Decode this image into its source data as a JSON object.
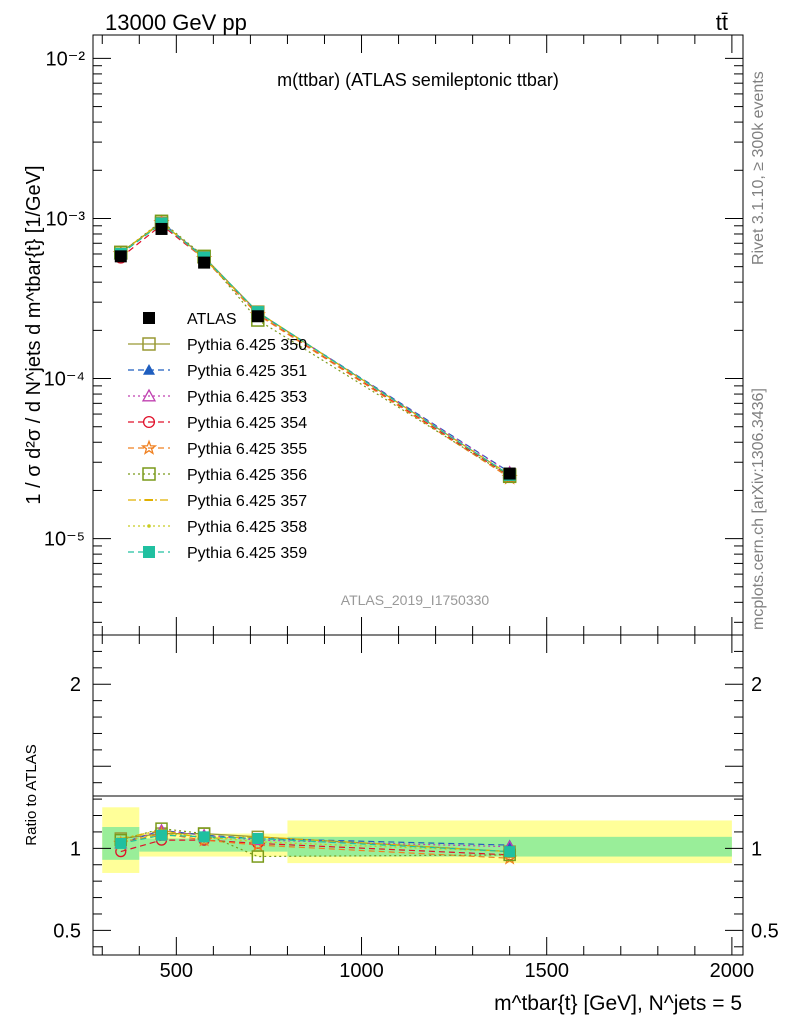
{
  "header": {
    "energy_label": "13000 GeV pp",
    "process_label": "tt̄"
  },
  "side_labels": {
    "rivet": "Rivet 3.1.10, ≥ 300k events",
    "mcplots": "mcplots.cern.ch [arXiv:1306.3436]"
  },
  "chart_data": [
    {
      "type": "line",
      "panel": "main",
      "title": "m(ttbar) (ATLAS semileptonic ttbar)",
      "watermark": "ATLAS_2019_I1750330",
      "ylabel": "1 / σ d²σ / d N^jets d m^tbar{t} [1/GeV]",
      "yscale": "log",
      "ylim": [
        2.5e-06,
        0.014
      ],
      "xlim": [
        275,
        2030
      ],
      "y_tick_labels": [
        "10⁻⁵",
        "10⁻⁴",
        "10⁻³",
        "10⁻²"
      ],
      "legend_position": "left-middle",
      "x": [
        350,
        460,
        575,
        720,
        1400
      ],
      "series": [
        {
          "name": "ATLAS",
          "color": "#000000",
          "marker": "square-filled",
          "line": "none",
          "values": [
            0.00058,
            0.00086,
            0.00053,
            0.000245,
            2.55e-05
          ]
        },
        {
          "name": "Pythia 6.425 350",
          "color": "#999933",
          "marker": "square-open",
          "line": "solid",
          "values": [
            0.000615,
            0.000935,
            0.000575,
            0.00026,
            2.5e-05
          ]
        },
        {
          "name": "Pythia 6.425 351",
          "color": "#1f5ebf",
          "marker": "triangle-filled",
          "line": "dashed",
          "values": [
            0.0006,
            0.00095,
            0.00057,
            0.000258,
            2.6e-05
          ]
        },
        {
          "name": "Pythia 6.425 353",
          "color": "#c040b0",
          "marker": "triangle-open",
          "line": "dotted",
          "values": [
            0.0006,
            0.00095,
            0.00057,
            0.000256,
            2.58e-05
          ]
        },
        {
          "name": "Pythia 6.425 354",
          "color": "#e0102a",
          "marker": "circle-open",
          "line": "dashed",
          "values": [
            0.00057,
            0.00091,
            0.00056,
            0.000252,
            2.45e-05
          ]
        },
        {
          "name": "Pythia 6.425 355",
          "color": "#f08020",
          "marker": "star-open",
          "line": "dashed",
          "values": [
            0.0006,
            0.00094,
            0.00056,
            0.00025,
            2.4e-05
          ]
        },
        {
          "name": "Pythia 6.425 356",
          "color": "#7a9a1a",
          "marker": "square-open",
          "line": "dotted",
          "values": [
            0.00061,
            0.00096,
            0.00058,
            0.000232,
            2.45e-05
          ]
        },
        {
          "name": "Pythia 6.425 357",
          "color": "#e0b000",
          "marker": "dash-point",
          "line": "dashdot",
          "values": [
            0.00061,
            0.00095,
            0.00056,
            0.00026,
            2.5e-05
          ]
        },
        {
          "name": "Pythia 6.425 358",
          "color": "#c8cc20",
          "marker": "dot",
          "line": "dotted",
          "values": [
            0.0006,
            0.00094,
            0.00057,
            0.000255,
            2.5e-05
          ]
        },
        {
          "name": "Pythia 6.425 359",
          "color": "#20c0a0",
          "marker": "square-filled",
          "line": "dashed",
          "values": [
            0.0006,
            0.00093,
            0.00057,
            0.00026,
            2.5e-05
          ]
        }
      ]
    },
    {
      "type": "line",
      "panel": "ratio",
      "ylabel": "Ratio to ATLAS",
      "xlabel": "m^tbar{t} [GeV], N^jets = 5",
      "ylim": [
        0.35,
        2.3
      ],
      "xlim": [
        275,
        2030
      ],
      "x_ticks": [
        500,
        1000,
        1500,
        2000
      ],
      "y_ticks": [
        0.5,
        1,
        2
      ],
      "uncertainty_bands": [
        {
          "xmin": 300,
          "xmax": 400,
          "inner": [
            0.93,
            1.13
          ],
          "outer": [
            0.85,
            1.25
          ]
        },
        {
          "xmin": 400,
          "xmax": 800,
          "inner": [
            0.98,
            1.06
          ],
          "outer": [
            0.95,
            1.09
          ]
        },
        {
          "xmin": 800,
          "xmax": 2000,
          "inner": [
            0.95,
            1.07
          ],
          "outer": [
            0.91,
            1.17
          ]
        }
      ],
      "x": [
        350,
        460,
        575,
        720,
        1400
      ],
      "series": [
        {
          "name": "Pythia 6.425 350",
          "values": [
            1.06,
            1.09,
            1.09,
            1.07,
            0.98
          ]
        },
        {
          "name": "Pythia 6.425 351",
          "values": [
            1.03,
            1.11,
            1.08,
            1.06,
            1.02
          ]
        },
        {
          "name": "Pythia 6.425 353",
          "values": [
            1.03,
            1.11,
            1.08,
            1.05,
            1.01
          ]
        },
        {
          "name": "Pythia 6.425 354",
          "values": [
            0.98,
            1.05,
            1.05,
            1.03,
            0.96
          ]
        },
        {
          "name": "Pythia 6.425 355",
          "values": [
            1.03,
            1.09,
            1.05,
            1.02,
            0.94
          ]
        },
        {
          "name": "Pythia 6.425 356",
          "values": [
            1.05,
            1.12,
            1.09,
            0.95,
            0.96
          ]
        },
        {
          "name": "Pythia 6.425 357",
          "values": [
            1.06,
            1.11,
            1.06,
            1.07,
            0.98
          ]
        },
        {
          "name": "Pythia 6.425 358",
          "values": [
            1.04,
            1.09,
            1.07,
            1.04,
            0.98
          ]
        },
        {
          "name": "Pythia 6.425 359",
          "values": [
            1.03,
            1.08,
            1.07,
            1.06,
            0.98
          ]
        }
      ]
    }
  ]
}
